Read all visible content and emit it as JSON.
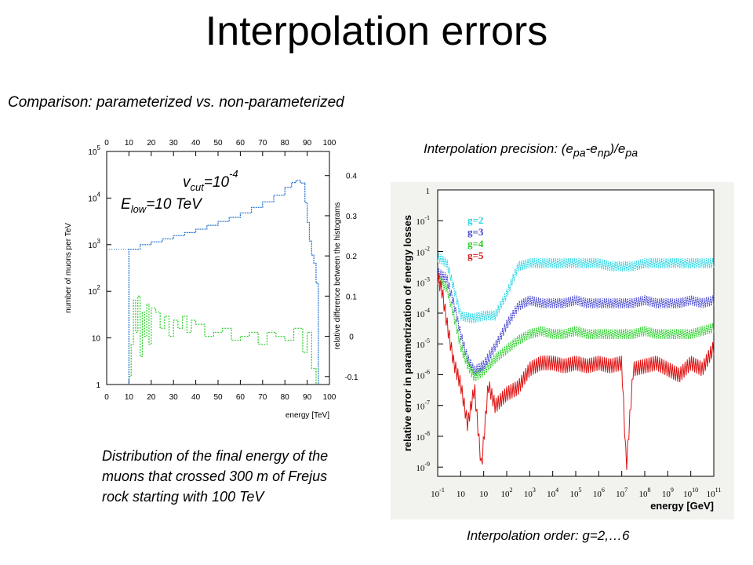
{
  "title": "Interpolation errors",
  "subtitle": "Comparison: parameterized vs. non-parameterized",
  "left_figure": {
    "caption": "Distribution of the final energy of the muons that crossed 300 m of Frejus rock starting with 100 TeV",
    "annotation_vcut": {
      "base": "v",
      "sub": "cut",
      "mid": "=10",
      "sup": "-4"
    },
    "annotation_elow": {
      "base": "E",
      "sub": "low",
      "rest": "=10 TeV"
    }
  },
  "right_figure": {
    "heading": {
      "a": "Interpolation precision: (e",
      "s1": "pa",
      "b": "-e",
      "s2": "np",
      "c": ")/e",
      "s3": "pa"
    },
    "footer": "Interpolation order: g=2,…6",
    "legend": [
      {
        "label": "g=2",
        "color": "#22d3e0"
      },
      {
        "label": "g=3",
        "color": "#4040d0"
      },
      {
        "label": "g=4",
        "color": "#22cc22"
      },
      {
        "label": "g=5",
        "color": "#dd1111"
      }
    ]
  },
  "chart_data": [
    {
      "type": "line",
      "xlabel": "energy [TeV]",
      "ylabel": "number of muons per TeV",
      "y2label": "relative difference between the histograms",
      "x_ticks": [
        "0",
        "10",
        "20",
        "30",
        "40",
        "50",
        "60",
        "70",
        "80",
        "90",
        "100"
      ],
      "y_ticks": [
        {
          "base": "1",
          "exp": ""
        },
        {
          "base": "10",
          "exp": ""
        },
        {
          "base": "10",
          "exp": "2"
        },
        {
          "base": "10",
          "exp": "3"
        },
        {
          "base": "10",
          "exp": "4"
        },
        {
          "base": "10",
          "exp": "5"
        }
      ],
      "y2_ticks": [
        "-0.1",
        "0",
        "0.1",
        "0.2",
        "0.3",
        "0.4"
      ],
      "xlim": [
        0,
        100
      ],
      "ylim_log10": [
        0,
        5
      ],
      "y2lim": [
        -0.12,
        0.46
      ],
      "series": [
        {
          "color": "#1e6fd0",
          "x": [
            10,
            15,
            20,
            25,
            30,
            35,
            40,
            45,
            50,
            55,
            60,
            65,
            70,
            75,
            80,
            83,
            85,
            87,
            89,
            90,
            91,
            92,
            93,
            94,
            95
          ],
          "y": [
            800,
            1000,
            1150,
            1330,
            1560,
            1820,
            2150,
            2600,
            3150,
            3850,
            4800,
            6300,
            8300,
            11500,
            17000,
            21500,
            24000,
            21000,
            8000,
            3000,
            1200,
            600,
            400,
            150,
            1
          ]
        },
        {
          "color": "#22cc22",
          "x": [
            10,
            11,
            12,
            13,
            14,
            15,
            16,
            17,
            18,
            19,
            20,
            22,
            24,
            26,
            28,
            30,
            32,
            34,
            36,
            38,
            40,
            44,
            48,
            52,
            56,
            60,
            64,
            68,
            72,
            76,
            80,
            84,
            88,
            90,
            92,
            94
          ],
          "y": [
            -0.1,
            -0.02,
            0.09,
            0.01,
            0.1,
            -0.05,
            0.06,
            0.0,
            0.08,
            -0.02,
            0.07,
            0.06,
            0.02,
            0.05,
            0.0,
            0.04,
            0.02,
            0.05,
            0.01,
            0.04,
            0.03,
            0.0,
            0.01,
            0.02,
            -0.01,
            0.0,
            0.01,
            -0.02,
            0.01,
            0.0,
            -0.01,
            0.02,
            -0.04,
            0.01,
            -0.08,
            -0.12
          ]
        }
      ]
    },
    {
      "type": "line",
      "xlabel": "energy [GeV]",
      "ylabel": "relative error in parametrization of energy losses",
      "x_ticks": [
        {
          "base": "10",
          "exp": "-1"
        },
        {
          "base": "10",
          "exp": ""
        },
        {
          "base": "10",
          "exp": ""
        },
        {
          "base": "10",
          "exp": "2"
        },
        {
          "base": "10",
          "exp": "3"
        },
        {
          "base": "10",
          "exp": "4"
        },
        {
          "base": "10",
          "exp": "5"
        },
        {
          "base": "10",
          "exp": "6"
        },
        {
          "base": "10",
          "exp": "7"
        },
        {
          "base": "10",
          "exp": "8"
        },
        {
          "base": "10",
          "exp": "9"
        },
        {
          "base": "10",
          "exp": "10"
        },
        {
          "base": "10",
          "exp": "11"
        }
      ],
      "y_ticks": [
        {
          "base": "1",
          "exp": ""
        },
        {
          "base": "10",
          "exp": "-1"
        },
        {
          "base": "10",
          "exp": "-2"
        },
        {
          "base": "10",
          "exp": "-3"
        },
        {
          "base": "10",
          "exp": "-4"
        },
        {
          "base": "10",
          "exp": "-5"
        },
        {
          "base": "10",
          "exp": "-6"
        },
        {
          "base": "10",
          "exp": "-7"
        },
        {
          "base": "10",
          "exp": "-8"
        },
        {
          "base": "10",
          "exp": "-9"
        }
      ],
      "xlim_log10": [
        -1,
        11
      ],
      "ylim_log10": [
        -9.3,
        0
      ],
      "series": [
        {
          "name": "g=2",
          "color": "#22d3e0",
          "x": [
            -1,
            -0.6,
            -0.3,
            0,
            0.5,
            1,
            1.5,
            2,
            2.5,
            3,
            3.5,
            4,
            4.5,
            5,
            5.5,
            6,
            6.5,
            7,
            7.5,
            8,
            8.5,
            9,
            9.5,
            10,
            10.5,
            11
          ],
          "y": [
            -2.3,
            -2.5,
            -3.3,
            -4.2,
            -4.3,
            -4.2,
            -4.2,
            -3.5,
            -2.6,
            -2.5,
            -2.5,
            -2.5,
            -2.5,
            -2.5,
            -2.5,
            -2.5,
            -2.6,
            -2.6,
            -2.6,
            -2.5,
            -2.5,
            -2.5,
            -2.5,
            -2.5,
            -2.5,
            -2.5
          ]
        },
        {
          "name": "g=3",
          "color": "#4040d0",
          "x": [
            -1,
            -0.6,
            -0.3,
            0,
            0.3,
            0.6,
            1,
            1.5,
            2,
            2.5,
            3,
            3.5,
            4,
            4.5,
            5,
            5.5,
            6,
            6.5,
            7,
            7.5,
            8,
            8.5,
            9,
            9.5,
            10,
            10.5,
            11
          ],
          "y": [
            -2.8,
            -3.0,
            -3.8,
            -4.8,
            -5.6,
            -6.0,
            -5.8,
            -5.2,
            -4.5,
            -3.9,
            -3.7,
            -3.8,
            -3.8,
            -3.8,
            -3.7,
            -3.8,
            -3.8,
            -3.8,
            -3.8,
            -3.8,
            -3.7,
            -3.8,
            -3.8,
            -3.8,
            -3.7,
            -3.8,
            -3.7
          ]
        },
        {
          "name": "g=4",
          "color": "#22cc22",
          "x": [
            -1,
            -0.6,
            -0.3,
            0,
            0.3,
            0.6,
            1,
            1.5,
            2,
            2.5,
            3,
            3.5,
            4,
            4.5,
            5,
            5.5,
            6,
            6.5,
            7,
            7.5,
            8,
            8.5,
            9,
            9.5,
            10,
            10.5,
            11
          ],
          "y": [
            -3.0,
            -3.3,
            -4.2,
            -5.2,
            -5.8,
            -6.2,
            -6.0,
            -5.6,
            -5.3,
            -5.0,
            -4.8,
            -4.7,
            -4.8,
            -4.8,
            -4.7,
            -4.8,
            -4.8,
            -4.8,
            -4.8,
            -4.8,
            -4.7,
            -4.8,
            -4.8,
            -4.8,
            -4.8,
            -4.7,
            -4.6
          ]
        },
        {
          "name": "g=5",
          "color": "#dd1111",
          "x": [
            -1,
            -0.8,
            -0.6,
            -0.3,
            0,
            0.3,
            0.6,
            0.9,
            1.2,
            1.5,
            2,
            2.5,
            3,
            3.5,
            4,
            4.5,
            5,
            5.5,
            6,
            6.5,
            7,
            7.2,
            7.5,
            8,
            8.5,
            9,
            9.5,
            10,
            10.5,
            11
          ],
          "y": [
            -3.0,
            -3.5,
            -4.5,
            -5.8,
            -6.5,
            -7.8,
            -6.6,
            -9.2,
            -6.5,
            -7.2,
            -6.8,
            -6.6,
            -6.0,
            -5.8,
            -5.8,
            -5.9,
            -5.8,
            -5.9,
            -5.8,
            -5.9,
            -5.8,
            -9.2,
            -6.0,
            -5.9,
            -5.8,
            -6.0,
            -6.2,
            -5.8,
            -6.0,
            -5.3
          ]
        }
      ]
    }
  ]
}
